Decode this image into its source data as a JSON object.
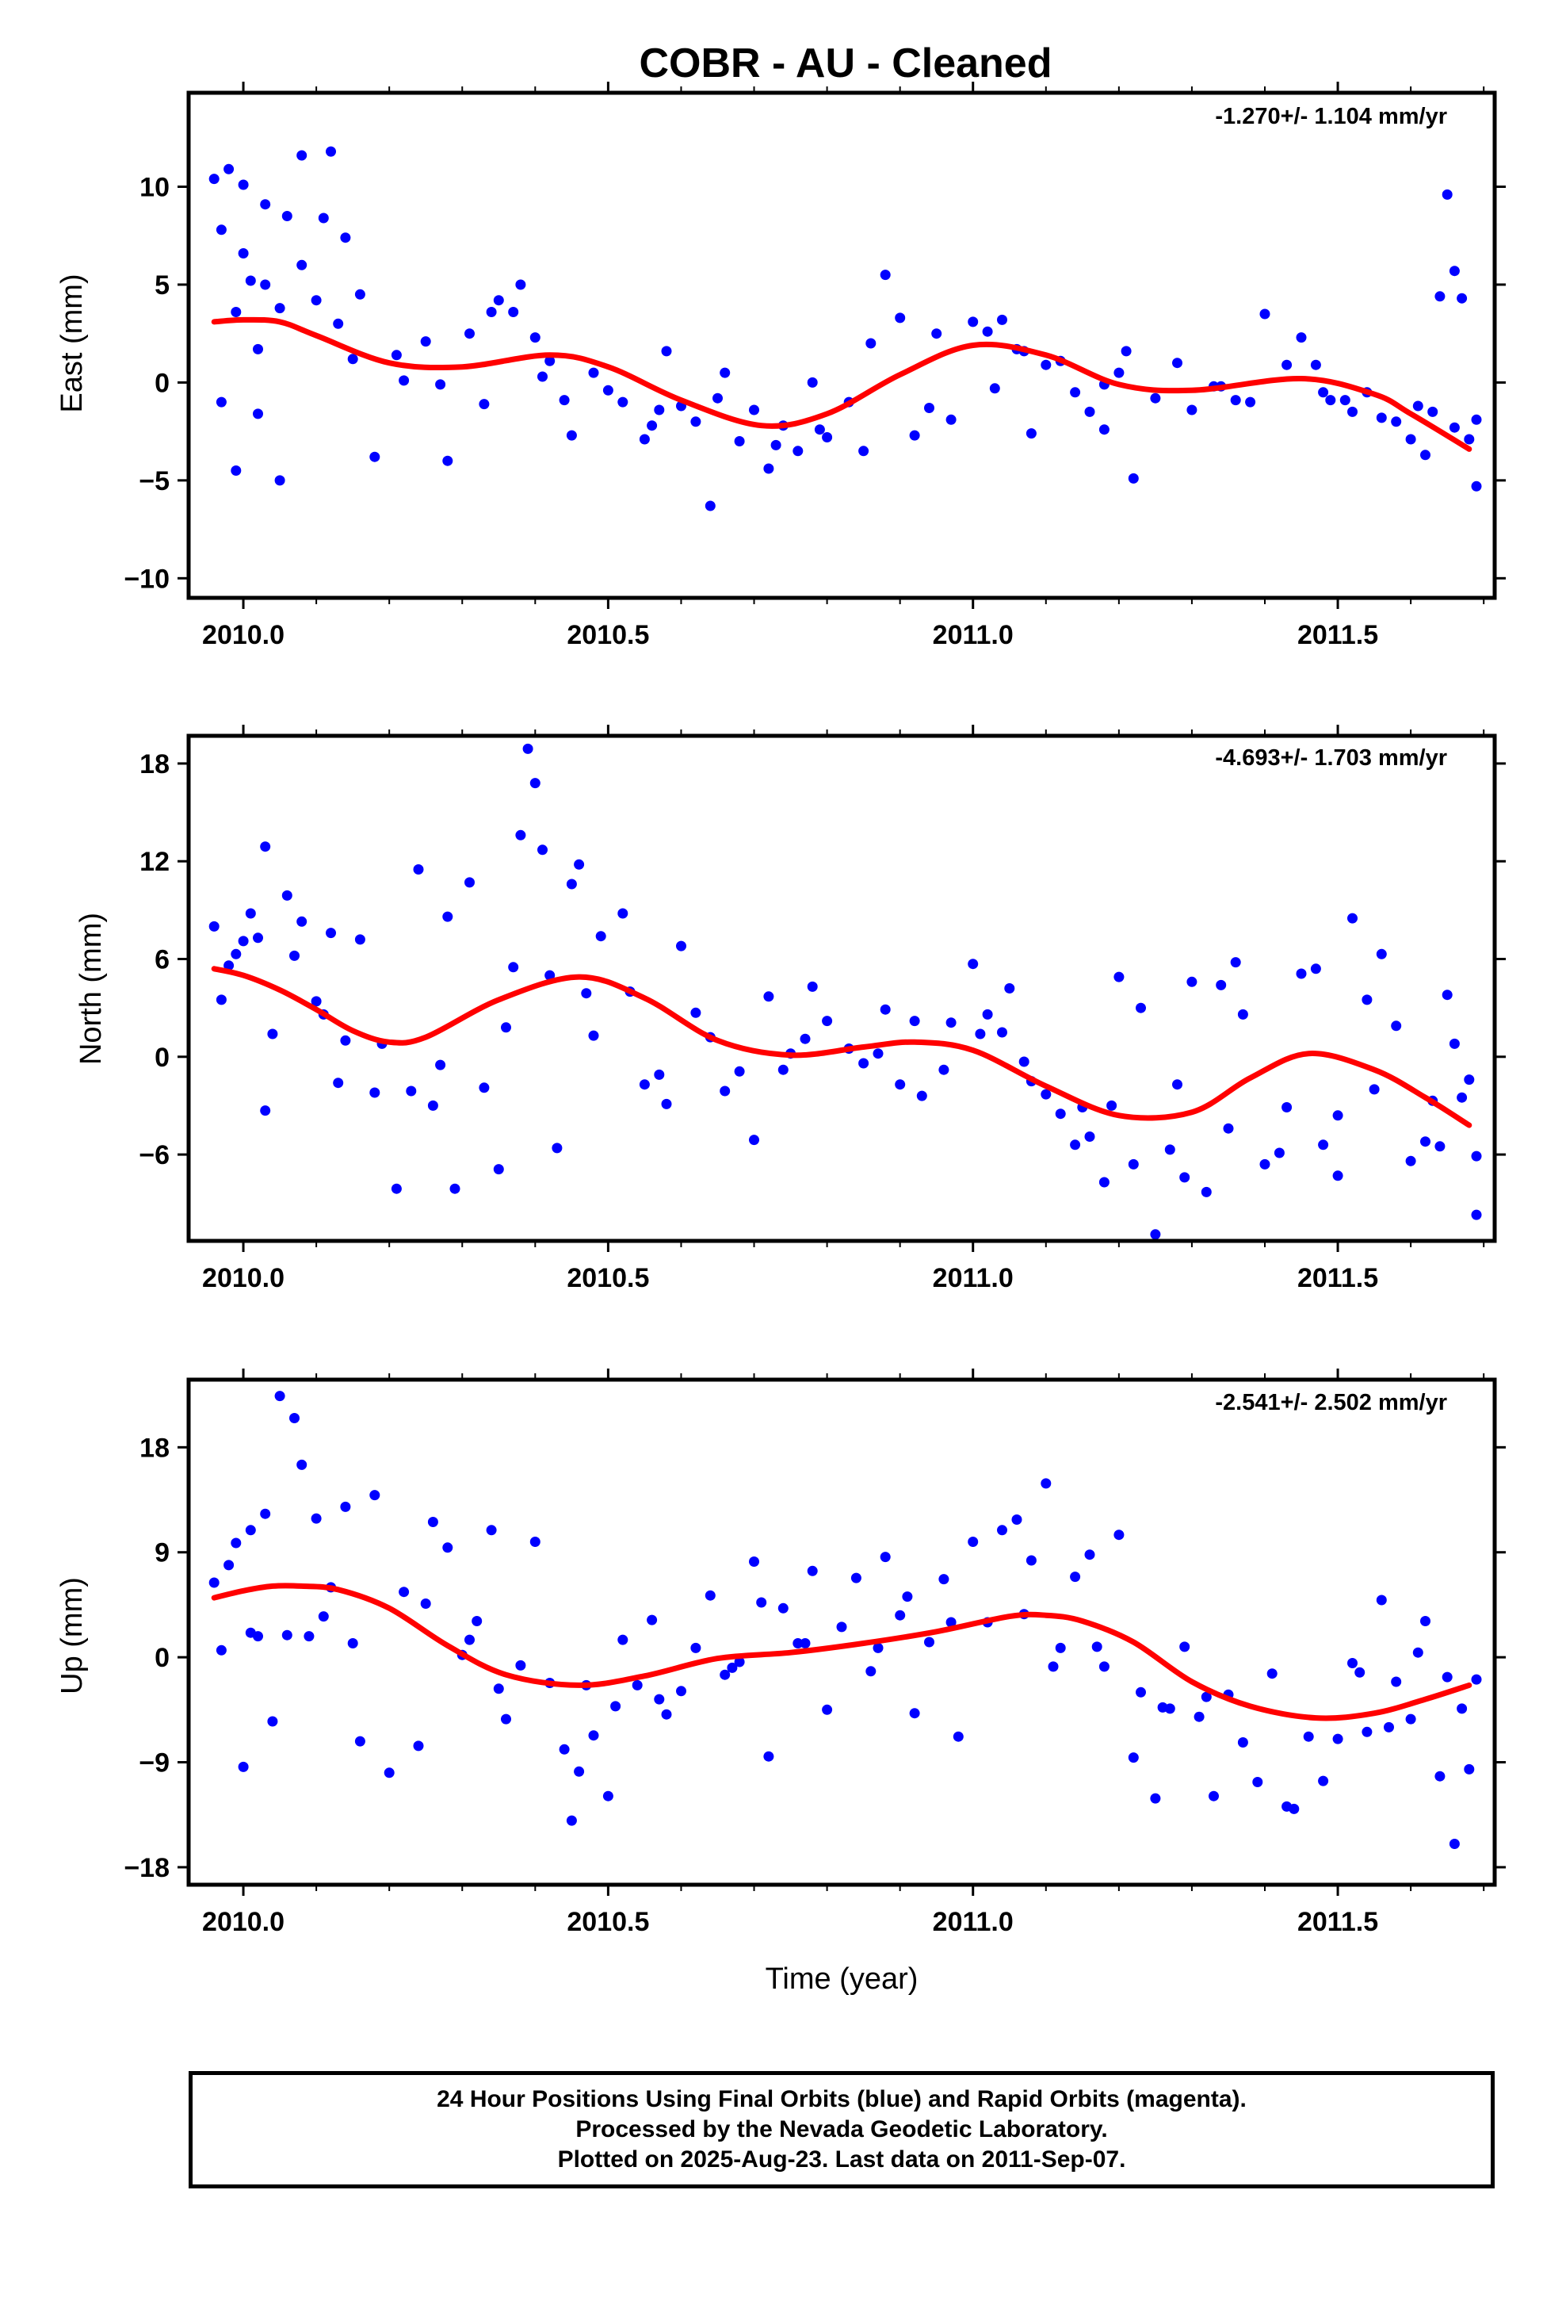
{
  "title": "COBR  - AU - Cleaned",
  "footer": {
    "line1": "24 Hour Positions Using Final Orbits (blue) and Rapid Orbits (magenta).",
    "line2": "Processed by the Nevada Geodetic Laboratory.",
    "line3": "Plotted on 2025-Aug-23. Last data on 2011-Sep-07."
  },
  "colors": {
    "points": "#0000ff",
    "fit": "#ff0000"
  },
  "chart_data": [
    {
      "type": "scatter",
      "ylabel": "East (mm)",
      "xlabel": "",
      "rate_label": "-1.270+/- 1.104 mm/yr",
      "xlim": [
        2009.925,
        2011.715
      ],
      "ylim": [
        -11,
        14.8
      ],
      "xticks": [
        2010.0,
        2010.5,
        2011.0,
        2011.5
      ],
      "xtick_labels": [
        "2010.0",
        "2010.5",
        "2011.0",
        "2011.5"
      ],
      "yticks": [
        -10,
        -5,
        0,
        5,
        10
      ],
      "ytick_labels": [
        "−10",
        "−5",
        "0",
        "5",
        "10"
      ],
      "fit": {
        "x": [
          2009.96,
          2010.0,
          2010.05,
          2010.1,
          2010.2,
          2010.3,
          2010.42,
          2010.5,
          2010.6,
          2010.71,
          2010.8,
          2010.9,
          2011.0,
          2011.1,
          2011.2,
          2011.3,
          2011.45,
          2011.55,
          2011.6,
          2011.68
        ],
        "y": [
          3.1,
          3.2,
          3.1,
          2.4,
          1.0,
          0.8,
          1.4,
          0.8,
          -0.9,
          -2.2,
          -1.6,
          0.4,
          1.9,
          1.4,
          -0.1,
          -0.4,
          0.2,
          -0.6,
          -1.6,
          -3.4
        ]
      },
      "points": {
        "x": [
          2009.96,
          2009.97,
          2009.98,
          2009.99,
          2010.0,
          2010.0,
          2010.01,
          2010.02,
          2010.03,
          2010.05,
          2010.06,
          2010.08,
          2010.1,
          2010.12,
          2010.14,
          2010.16,
          2009.97,
          2009.99,
          2010.02,
          2010.05,
          2010.08,
          2010.11,
          2010.15,
          2010.18,
          2010.22,
          2010.25,
          2010.28,
          2010.31,
          2010.33,
          2010.35,
          2010.37,
          2010.38,
          2010.4,
          2010.42,
          2010.45,
          2010.48,
          2010.5,
          2010.52,
          2010.55,
          2010.58,
          2010.6,
          2010.62,
          2010.64,
          2010.66,
          2010.68,
          2010.7,
          2010.72,
          2010.74,
          2010.76,
          2010.78,
          2010.8,
          2010.83,
          2010.86,
          2010.88,
          2010.9,
          2010.92,
          2010.95,
          2010.97,
          2011.0,
          2011.02,
          2011.04,
          2011.06,
          2011.08,
          2011.1,
          2011.12,
          2011.14,
          2011.16,
          2011.18,
          2011.2,
          2011.22,
          2011.25,
          2011.28,
          2011.3,
          2011.33,
          2011.36,
          2011.4,
          2011.43,
          2011.45,
          2011.47,
          2011.49,
          2011.52,
          2011.54,
          2011.56,
          2011.58,
          2011.6,
          2011.62,
          2011.63,
          2011.64,
          2011.65,
          2011.66,
          2011.67,
          2011.68,
          2011.69,
          2011.69,
          2010.03,
          2010.21,
          2010.34,
          2010.44,
          2010.57,
          2010.65,
          2010.79,
          2010.94,
          2011.07,
          2011.21,
          2011.34,
          2011.51,
          2011.61,
          2010.13,
          2010.27,
          2010.41,
          2010.56,
          2010.73,
          2010.85,
          2011.03,
          2011.18,
          2011.38,
          2011.48,
          2011.66
        ],
        "y": [
          10.4,
          7.8,
          10.9,
          3.6,
          6.6,
          10.1,
          5.2,
          1.7,
          9.1,
          3.8,
          8.5,
          11.6,
          4.2,
          11.8,
          7.4,
          4.5,
          -1.0,
          -4.5,
          -1.6,
          -5.0,
          6.0,
          8.4,
          1.2,
          -3.8,
          0.1,
          2.1,
          -4.0,
          2.5,
          -1.1,
          4.2,
          3.6,
          5.0,
          2.3,
          1.1,
          -2.7,
          0.5,
          -0.4,
          -1.0,
          -2.9,
          1.6,
          -1.2,
          -2.0,
          -6.3,
          0.5,
          -3.0,
          -1.4,
          -4.4,
          -2.2,
          -3.5,
          0.0,
          -2.8,
          -1.0,
          2.0,
          5.5,
          3.3,
          -2.7,
          2.5,
          -1.9,
          3.1,
          2.6,
          3.2,
          1.7,
          -2.6,
          0.9,
          1.1,
          -0.5,
          -1.5,
          -2.4,
          0.5,
          -4.9,
          -0.8,
          1.0,
          -1.4,
          -0.2,
          -0.9,
          3.5,
          0.9,
          2.3,
          0.9,
          -0.9,
          -1.5,
          -0.5,
          -1.8,
          -2.0,
          -2.9,
          -3.7,
          -1.5,
          4.4,
          9.6,
          5.7,
          4.3,
          -2.9,
          -1.9,
          -5.3,
          5.0,
          1.4,
          3.6,
          -0.9,
          -1.4,
          -0.8,
          -2.4,
          -1.3,
          1.6,
          1.6,
          -0.2,
          -0.9,
          -1.2,
          3.0,
          -0.1,
          0.3,
          -2.2,
          -3.2,
          -3.5,
          -0.3,
          -0.1,
          -1.0,
          -0.5,
          -2.3
        ]
      }
    },
    {
      "type": "scatter",
      "ylabel": "North (mm)",
      "xlabel": "",
      "rate_label": "-4.693+/- 1.703 mm/yr",
      "xlim": [
        2009.925,
        2011.715
      ],
      "ylim": [
        -11.3,
        19.7
      ],
      "xticks": [
        2010.0,
        2010.5,
        2011.0,
        2011.5
      ],
      "xtick_labels": [
        "2010.0",
        "2010.5",
        "2011.0",
        "2011.5"
      ],
      "yticks": [
        -6,
        0,
        6,
        12,
        18
      ],
      "ytick_labels": [
        "−6",
        "0",
        "6",
        "12",
        "18"
      ],
      "fit": {
        "x": [
          2009.96,
          2010.0,
          2010.05,
          2010.1,
          2010.15,
          2010.2,
          2010.25,
          2010.35,
          2010.46,
          2010.55,
          2010.65,
          2010.75,
          2010.85,
          2010.92,
          2011.0,
          2011.1,
          2011.2,
          2011.3,
          2011.38,
          2011.46,
          2011.55,
          2011.62,
          2011.68
        ],
        "y": [
          5.4,
          5.0,
          4.1,
          2.9,
          1.6,
          0.9,
          1.2,
          3.5,
          4.9,
          3.6,
          1.0,
          0.1,
          0.6,
          0.9,
          0.4,
          -1.8,
          -3.6,
          -3.4,
          -1.3,
          0.2,
          -0.8,
          -2.5,
          -4.2
        ]
      },
      "points": {
        "x": [
          2009.96,
          2009.97,
          2009.98,
          2009.99,
          2010.0,
          2010.01,
          2010.02,
          2010.03,
          2010.04,
          2010.06,
          2010.07,
          2010.08,
          2010.1,
          2010.12,
          2010.14,
          2010.16,
          2010.18,
          2010.19,
          2010.21,
          2010.24,
          2010.26,
          2010.28,
          2010.29,
          2010.31,
          2010.33,
          2010.35,
          2010.37,
          2010.38,
          2010.39,
          2010.4,
          2010.41,
          2010.43,
          2010.45,
          2010.46,
          2010.47,
          2010.49,
          2010.52,
          2010.55,
          2010.58,
          2010.6,
          2010.62,
          2010.64,
          2010.66,
          2010.7,
          2010.72,
          2010.75,
          2010.78,
          2010.8,
          2010.83,
          2010.85,
          2010.88,
          2010.9,
          2010.93,
          2010.96,
          2011.0,
          2011.01,
          2011.02,
          2011.05,
          2011.07,
          2011.1,
          2011.12,
          2011.14,
          2011.16,
          2011.18,
          2011.2,
          2011.22,
          2011.23,
          2011.25,
          2011.27,
          2011.29,
          2011.3,
          2011.32,
          2011.34,
          2011.36,
          2011.37,
          2011.4,
          2011.43,
          2011.45,
          2011.47,
          2011.48,
          2011.5,
          2011.52,
          2011.54,
          2011.56,
          2011.58,
          2011.6,
          2011.62,
          2011.64,
          2011.65,
          2011.66,
          2011.67,
          2011.68,
          2011.69,
          2011.69,
          2010.03,
          2010.13,
          2010.23,
          2010.36,
          2010.48,
          2010.57,
          2010.68,
          2010.77,
          2010.87,
          2010.97,
          2011.08,
          2011.19,
          2011.28,
          2011.42,
          2011.55,
          2011.63,
          2010.11,
          2010.27,
          2010.42,
          2010.53,
          2010.74,
          2010.92,
          2011.04,
          2011.15,
          2011.35,
          2011.5
        ],
        "y": [
          8.0,
          3.5,
          5.6,
          6.3,
          7.1,
          8.8,
          7.3,
          12.9,
          1.4,
          9.9,
          6.2,
          8.3,
          3.4,
          7.6,
          1.0,
          7.2,
          -2.2,
          0.8,
          -8.1,
          11.5,
          -3.0,
          8.6,
          -8.1,
          10.7,
          -1.9,
          -6.9,
          5.5,
          13.6,
          18.9,
          16.8,
          12.7,
          -5.6,
          10.6,
          11.8,
          3.9,
          7.4,
          8.8,
          -1.7,
          -2.9,
          6.8,
          2.7,
          1.2,
          -2.1,
          -5.1,
          3.7,
          0.2,
          4.3,
          2.2,
          0.5,
          -0.4,
          2.9,
          -1.7,
          -2.4,
          -0.8,
          5.7,
          1.4,
          2.6,
          4.2,
          -0.3,
          -2.3,
          -3.5,
          -5.4,
          -4.9,
          -7.7,
          4.9,
          -6.6,
          3.0,
          -10.9,
          -5.7,
          -7.4,
          4.6,
          -8.3,
          4.4,
          5.8,
          2.6,
          -6.6,
          -3.1,
          5.1,
          5.4,
          -5.4,
          -7.3,
          8.5,
          3.5,
          6.3,
          1.9,
          -6.4,
          -5.2,
          -5.5,
          3.8,
          0.8,
          -2.5,
          -1.4,
          -9.7,
          -6.1,
          -3.3,
          -1.6,
          -2.1,
          1.8,
          1.3,
          -1.1,
          -0.9,
          1.1,
          0.2,
          2.1,
          -1.5,
          -3.0,
          -1.7,
          -5.9,
          -2.0,
          -2.7,
          2.6,
          -0.5,
          5.0,
          4.0,
          -0.8,
          2.2,
          1.5,
          -3.1,
          -4.4,
          -3.6
        ]
      }
    },
    {
      "type": "scatter",
      "ylabel": "Up (mm)",
      "xlabel": "Time (year)",
      "rate_label": "-2.541+/- 2.502 mm/yr",
      "xlim": [
        2009.925,
        2011.715
      ],
      "ylim": [
        -19.5,
        23.8
      ],
      "xticks": [
        2010.0,
        2010.5,
        2011.0,
        2011.5
      ],
      "xtick_labels": [
        "2010.0",
        "2010.5",
        "2011.0",
        "2011.5"
      ],
      "yticks": [
        -18,
        -9,
        0,
        9,
        18
      ],
      "ytick_labels": [
        "−18",
        "−9",
        "0",
        "9",
        "18"
      ],
      "fit": {
        "x": [
          2009.96,
          2010.0,
          2010.04,
          2010.08,
          2010.13,
          2010.2,
          2010.28,
          2010.36,
          2010.46,
          2010.55,
          2010.65,
          2010.75,
          2010.85,
          2010.95,
          2011.05,
          2011.1,
          2011.15,
          2011.22,
          2011.3,
          2011.38,
          2011.47,
          2011.55,
          2011.62,
          2011.68
        ],
        "y": [
          5.1,
          5.7,
          6.1,
          6.1,
          5.8,
          4.2,
          1.0,
          -1.5,
          -2.4,
          -1.6,
          -0.1,
          0.4,
          1.2,
          2.2,
          3.5,
          3.6,
          3.1,
          1.3,
          -2.1,
          -4.2,
          -5.2,
          -4.8,
          -3.6,
          -2.4
        ]
      },
      "points": {
        "x": [
          2009.96,
          2009.97,
          2009.98,
          2009.99,
          2010.0,
          2010.01,
          2010.02,
          2010.03,
          2010.04,
          2010.05,
          2010.06,
          2010.07,
          2010.08,
          2010.1,
          2010.12,
          2010.14,
          2010.16,
          2010.18,
          2010.2,
          2010.22,
          2010.24,
          2010.26,
          2010.28,
          2010.3,
          2010.32,
          2010.34,
          2010.36,
          2010.38,
          2010.4,
          2010.42,
          2010.44,
          2010.45,
          2010.46,
          2010.48,
          2010.5,
          2010.52,
          2010.54,
          2010.56,
          2010.58,
          2010.6,
          2010.62,
          2010.64,
          2010.66,
          2010.68,
          2010.7,
          2010.72,
          2010.74,
          2010.76,
          2010.78,
          2010.8,
          2010.82,
          2010.84,
          2010.86,
          2010.88,
          2010.9,
          2010.92,
          2010.94,
          2010.96,
          2010.98,
          2011.0,
          2011.02,
          2011.04,
          2011.06,
          2011.08,
          2011.1,
          2011.12,
          2011.14,
          2011.16,
          2011.18,
          2011.2,
          2011.22,
          2011.23,
          2011.25,
          2011.27,
          2011.29,
          2011.31,
          2011.33,
          2011.35,
          2011.37,
          2011.41,
          2011.43,
          2011.44,
          2011.46,
          2011.48,
          2011.5,
          2011.52,
          2011.54,
          2011.56,
          2011.58,
          2011.6,
          2011.62,
          2011.64,
          2011.65,
          2011.66,
          2011.67,
          2011.68,
          2011.69,
          2010.01,
          2010.09,
          2010.15,
          2010.25,
          2010.35,
          2010.47,
          2010.57,
          2010.67,
          2010.77,
          2010.87,
          2010.97,
          2011.07,
          2011.17,
          2011.26,
          2011.39,
          2011.53,
          2011.61,
          2010.11,
          2010.31,
          2010.51,
          2010.71,
          2010.91,
          2011.11,
          2011.32,
          2011.57
        ],
        "y": [
          6.4,
          0.6,
          7.9,
          9.8,
          -9.4,
          10.9,
          1.8,
          12.3,
          -5.5,
          22.4,
          1.9,
          20.5,
          16.5,
          11.9,
          6.0,
          12.9,
          -7.2,
          13.9,
          -9.9,
          5.6,
          -7.6,
          11.6,
          9.4,
          0.2,
          3.1,
          10.9,
          -5.3,
          -0.7,
          9.9,
          -2.2,
          -7.9,
          -14.0,
          -9.8,
          -6.7,
          -11.9,
          1.5,
          -2.4,
          3.2,
          -4.9,
          -2.9,
          0.8,
          5.3,
          -1.5,
          -0.4,
          8.2,
          -8.5,
          4.2,
          1.2,
          7.4,
          -4.5,
          2.6,
          6.8,
          -1.2,
          8.6,
          3.6,
          -4.8,
          1.3,
          6.7,
          -6.8,
          9.9,
          3.0,
          10.9,
          11.8,
          8.3,
          14.9,
          0.8,
          6.9,
          8.8,
          -0.8,
          10.5,
          -8.6,
          -3.0,
          -12.1,
          -4.4,
          0.9,
          -5.1,
          -11.9,
          -3.2,
          -7.3,
          -1.4,
          -12.8,
          -13.0,
          -6.8,
          -10.6,
          -7.0,
          -0.5,
          -6.4,
          4.9,
          -2.1,
          -5.3,
          3.1,
          -10.2,
          -1.7,
          -16.0,
          -4.4,
          -9.6,
          -1.9,
          2.1,
          1.8,
          1.2,
          4.6,
          -2.7,
          -2.4,
          -3.6,
          -0.9,
          1.2,
          0.8,
          3.0,
          3.7,
          0.9,
          -4.3,
          -10.7,
          -1.3,
          0.4,
          3.5,
          1.5,
          -4.2,
          4.7,
          5.2,
          -0.8,
          -3.4,
          -6.0
        ]
      }
    }
  ]
}
